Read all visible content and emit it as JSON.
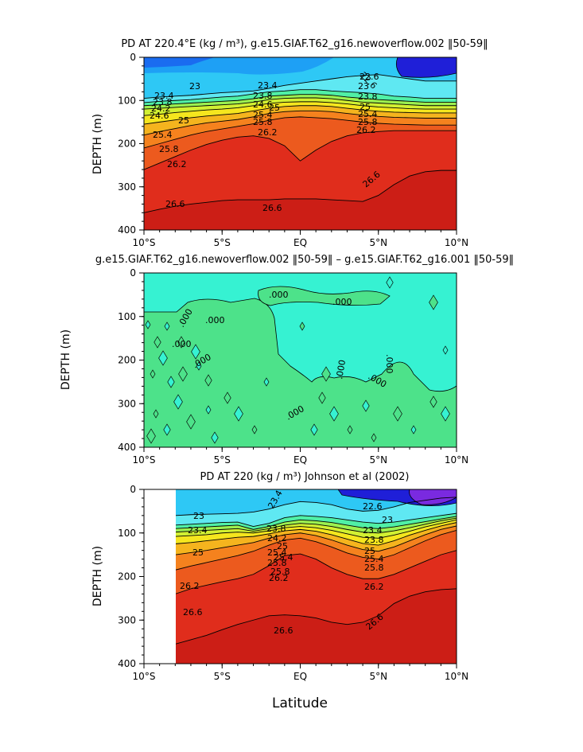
{
  "figure": {
    "x_label": "Latitude",
    "lat_ticks": [
      "10°S",
      "5°S",
      "EQ",
      "5°N",
      "10°N"
    ],
    "depth_ticks": [
      "0",
      "100",
      "200",
      "300",
      "400"
    ],
    "y_label": "DEPTH (m)"
  },
  "colors": {
    "density_scale": [
      "#1f1fd8",
      "#1a6cf0",
      "#1ea0f5",
      "#2ec8f5",
      "#5fe8f2",
      "#50f0a6",
      "#9cf050",
      "#d2f032",
      "#f5e61e",
      "#f5b41e",
      "#f5821e",
      "#ec5a1e",
      "#e02d1c",
      "#cc1e16",
      "#b4140f"
    ],
    "diff_positive": "#4de28a",
    "diff_zero": "#36f2d2",
    "contour_line": "#000000"
  },
  "chart_data": [
    {
      "type": "heatmap",
      "title": "PD AT 220.4°E (kg / m³), g.e15.GIAF.T62_g16.newoverflow.002 ‖50-59‖",
      "x_ticks": [
        "10°S",
        "5°S",
        "EQ",
        "5°N",
        "10°N"
      ],
      "x_range": [
        -10,
        10
      ],
      "ylabel": "DEPTH (m)",
      "y_range": [
        0,
        400
      ],
      "y_ticks": [
        0,
        100,
        200,
        300,
        400
      ],
      "y_inverted": true,
      "contour_labels": [
        "23",
        "23.4",
        "23.8",
        "24.2",
        "24.6",
        "25",
        "25.4",
        "25.8",
        "26.2",
        "26.6",
        "22.6",
        "23.4",
        "23.8",
        "24.6",
        "25",
        "25.4",
        "25.8",
        "26.2",
        "26.6",
        "22.6",
        "23",
        "23.8",
        "25",
        "25.4",
        "25.8",
        "26.2",
        "26.6"
      ],
      "isopycnals": [
        {
          "sigma": 23.0,
          "depth": [
            95,
            92,
            90,
            88,
            85,
            82,
            80,
            78,
            72,
            65,
            60,
            55,
            50,
            45,
            42,
            40,
            45,
            50,
            55,
            55,
            55
          ]
        },
        {
          "sigma": 23.4,
          "depth": [
            105,
            102,
            100,
            98,
            95,
            92,
            90,
            85,
            80,
            78,
            75,
            75,
            78,
            80,
            82,
            85,
            90,
            92,
            95,
            95,
            95
          ]
        },
        {
          "sigma": 23.8,
          "depth": [
            112,
            110,
            108,
            106,
            104,
            102,
            100,
            96,
            90,
            88,
            86,
            86,
            88,
            92,
            95,
            98,
            100,
            102,
            104,
            104,
            104
          ]
        },
        {
          "sigma": 24.2,
          "depth": [
            120,
            118,
            116,
            114,
            112,
            110,
            108,
            104,
            98,
            95,
            94,
            94,
            96,
            100,
            104,
            106,
            108,
            110,
            112,
            112,
            112
          ]
        },
        {
          "sigma": 24.6,
          "depth": [
            135,
            132,
            128,
            125,
            122,
            120,
            117,
            112,
            107,
            104,
            103,
            103,
            105,
            108,
            112,
            115,
            117,
            119,
            120,
            120,
            120
          ]
        },
        {
          "sigma": 25.0,
          "depth": [
            155,
            150,
            145,
            140,
            136,
            133,
            130,
            124,
            118,
            114,
            112,
            112,
            114,
            118,
            122,
            125,
            127,
            128,
            129,
            129,
            129
          ]
        },
        {
          "sigma": 25.4,
          "depth": [
            180,
            172,
            165,
            158,
            152,
            148,
            144,
            138,
            130,
            126,
            124,
            124,
            126,
            130,
            134,
            137,
            139,
            140,
            141,
            141,
            141
          ]
        },
        {
          "sigma": 25.8,
          "depth": [
            210,
            200,
            190,
            180,
            172,
            166,
            160,
            154,
            146,
            140,
            138,
            140,
            142,
            146,
            150,
            153,
            155,
            156,
            157,
            157,
            157
          ]
        },
        {
          "sigma": 26.2,
          "depth": [
            260,
            245,
            230,
            215,
            202,
            192,
            185,
            182,
            188,
            205,
            240,
            215,
            195,
            182,
            175,
            172,
            170,
            170,
            170,
            170,
            170
          ]
        },
        {
          "sigma": 26.6,
          "depth": [
            360,
            352,
            345,
            340,
            336,
            332,
            330,
            330,
            330,
            328,
            328,
            328,
            330,
            332,
            334,
            320,
            295,
            275,
            265,
            262,
            262
          ]
        }
      ]
    },
    {
      "type": "heatmap",
      "title": "g.e15.GIAF.T62_g16.newoverflow.002 ‖50-59‖ – g.e15.GIAF.T62_g16.001 ‖50-59‖",
      "x_ticks": [
        "10°S",
        "5°S",
        "EQ",
        "5°N",
        "10°N"
      ],
      "x_range": [
        -10,
        10
      ],
      "ylabel": "DEPTH (m)",
      "y_range": [
        0,
        400
      ],
      "y_ticks": [
        0,
        100,
        200,
        300,
        400
      ],
      "y_inverted": true,
      "contour_labels": [
        ".000",
        ".000",
        ".000",
        ".000",
        ".000",
        ".000",
        ".000",
        ".000",
        ".000",
        ".000"
      ]
    },
    {
      "type": "heatmap",
      "title": "PD AT 220 (kg / m³) Johnson et al (2002)",
      "x_ticks": [
        "10°S",
        "5°S",
        "EQ",
        "5°N",
        "10°N"
      ],
      "x_range": [
        -10,
        10
      ],
      "data_x_range": [
        -8,
        10
      ],
      "xlabel": "Latitude",
      "ylabel": "DEPTH (m)",
      "y_range": [
        0,
        400
      ],
      "y_ticks": [
        0,
        100,
        200,
        300,
        400
      ],
      "y_inverted": true,
      "contour_labels": [
        "23",
        "23.4",
        "25",
        "25.4",
        "25.8",
        "26.2",
        "26.6",
        "23.4",
        "23.8",
        "24.2",
        "25",
        "25.4",
        "25.8",
        "26.2",
        "26.6",
        "22.6",
        "23",
        "23.4",
        "23.8",
        "25",
        "25.4",
        "25.8",
        "26.2",
        "26.6"
      ],
      "isopycnals": [
        {
          "sigma": 23.0,
          "depth": [
            null,
            null,
            60,
            58,
            57,
            56,
            55,
            52,
            45,
            35,
            28,
            30,
            35,
            45,
            50,
            48,
            40,
            30,
            25,
            20,
            18
          ]
        },
        {
          "sigma": 23.4,
          "depth": [
            null,
            null,
            82,
            80,
            78,
            76,
            75,
            85,
            78,
            65,
            60,
            62,
            65,
            70,
            75,
            78,
            75,
            70,
            65,
            60,
            55
          ]
        },
        {
          "sigma": 23.8,
          "depth": [
            null,
            null,
            90,
            88,
            86,
            84,
            82,
            92,
            85,
            75,
            70,
            72,
            76,
            82,
            88,
            90,
            86,
            80,
            74,
            68,
            62
          ]
        },
        {
          "sigma": 24.2,
          "depth": [
            null,
            null,
            98,
            96,
            94,
            92,
            90,
            96,
            90,
            82,
            78,
            80,
            85,
            92,
            98,
            100,
            95,
            88,
            80,
            72,
            66
          ]
        },
        {
          "sigma": 24.6,
          "depth": [
            null,
            null,
            108,
            106,
            104,
            100,
            98,
            100,
            95,
            88,
            85,
            88,
            94,
            102,
            110,
            112,
            105,
            96,
            86,
            78,
            70
          ]
        },
        {
          "sigma": 25.0,
          "depth": [
            null,
            null,
            125,
            122,
            118,
            114,
            110,
            108,
            102,
            95,
            92,
            96,
            104,
            114,
            124,
            128,
            118,
            105,
            94,
            84,
            76
          ]
        },
        {
          "sigma": 25.4,
          "depth": [
            null,
            null,
            150,
            145,
            140,
            134,
            128,
            122,
            112,
            104,
            100,
            106,
            116,
            128,
            138,
            142,
            132,
            118,
            104,
            92,
            84
          ]
        },
        {
          "sigma": 25.8,
          "depth": [
            null,
            null,
            185,
            176,
            168,
            160,
            152,
            142,
            128,
            116,
            112,
            120,
            132,
            146,
            156,
            160,
            150,
            134,
            118,
            104,
            94
          ]
        },
        {
          "sigma": 26.2,
          "depth": [
            null,
            null,
            240,
            228,
            220,
            212,
            205,
            195,
            175,
            152,
            148,
            160,
            180,
            195,
            205,
            205,
            195,
            180,
            165,
            150,
            140
          ]
        },
        {
          "sigma": 26.6,
          "depth": [
            null,
            null,
            355,
            345,
            335,
            322,
            310,
            300,
            290,
            288,
            290,
            295,
            305,
            310,
            305,
            290,
            262,
            245,
            235,
            230,
            228
          ]
        }
      ]
    }
  ]
}
